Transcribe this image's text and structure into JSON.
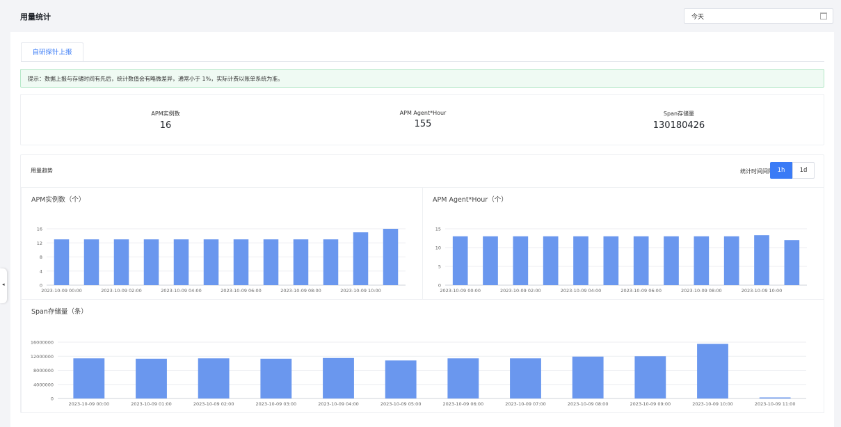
{
  "header": {
    "title": "用量统计",
    "date_value": "今天"
  },
  "tabs": [
    {
      "label": "自研探针上报"
    }
  ],
  "notice": "提示：数据上报与存储时间有先后，统计数值会有略微差异，通常小于 1%，实际计费以账单系统为准。",
  "stats": [
    {
      "label": "APM实例数",
      "value": "16"
    },
    {
      "label": "APM Agent*Hour",
      "value": "155"
    },
    {
      "label": "Span存储量",
      "value": "130180426"
    }
  ],
  "trend": {
    "title": "用量趋势",
    "interval_label": "统计时间间隔",
    "interval_options": [
      "1h",
      "1d"
    ],
    "interval_selected": "1h"
  },
  "colors": {
    "accent": "#3a7bf6",
    "bar": "#6a97ee"
  },
  "chart_data": [
    {
      "type": "bar",
      "title": "APM实例数（个）",
      "categories": [
        "2023-10-09 00:00",
        "2023-10-09 01:00",
        "2023-10-09 02:00",
        "2023-10-09 03:00",
        "2023-10-09 04:00",
        "2023-10-09 05:00",
        "2023-10-09 06:00",
        "2023-10-09 07:00",
        "2023-10-09 08:00",
        "2023-10-09 09:00",
        "2023-10-09 10:00",
        "2023-10-09 11:00"
      ],
      "tick_labels": [
        "2023-10-09 00:00",
        "2023-10-09 02:00",
        "2023-10-09 04:00",
        "2023-10-09 06:00",
        "2023-10-09 08:00",
        "2023-10-09 10:00"
      ],
      "tick_every": 2,
      "values": [
        13,
        13,
        13,
        13,
        13,
        13,
        13,
        13,
        13,
        13,
        15,
        16
      ],
      "yticks": [
        0,
        4,
        8,
        12,
        16
      ],
      "ylim": [
        0,
        16
      ]
    },
    {
      "type": "bar",
      "title": "APM Agent*Hour（个）",
      "categories": [
        "2023-10-09 00:00",
        "2023-10-09 01:00",
        "2023-10-09 02:00",
        "2023-10-09 03:00",
        "2023-10-09 04:00",
        "2023-10-09 05:00",
        "2023-10-09 06:00",
        "2023-10-09 07:00",
        "2023-10-09 08:00",
        "2023-10-09 09:00",
        "2023-10-09 10:00",
        "2023-10-09 11:00"
      ],
      "tick_labels": [
        "2023-10-09 00:00",
        "2023-10-09 02:00",
        "2023-10-09 04:00",
        "2023-10-09 06:00",
        "2023-10-09 08:00",
        "2023-10-09 10:00"
      ],
      "tick_every": 2,
      "values": [
        13,
        13,
        13,
        13,
        13,
        13,
        13,
        13,
        13,
        13,
        13.3,
        12
      ],
      "yticks": [
        0,
        5,
        10,
        15
      ],
      "ylim": [
        0,
        15
      ]
    },
    {
      "type": "bar",
      "title": "Span存储量（条）",
      "categories": [
        "2023-10-09 00:00",
        "2023-10-09 01:00",
        "2023-10-09 02:00",
        "2023-10-09 03:00",
        "2023-10-09 04:00",
        "2023-10-09 05:00",
        "2023-10-09 06:00",
        "2023-10-09 07:00",
        "2023-10-09 08:00",
        "2023-10-09 09:00",
        "2023-10-09 10:00",
        "2023-10-09 11:00"
      ],
      "tick_labels": [
        "2023-10-09 00:00",
        "2023-10-09 01:00",
        "2023-10-09 02:00",
        "2023-10-09 03:00",
        "2023-10-09 04:00",
        "2023-10-09 05:00",
        "2023-10-09 06:00",
        "2023-10-09 07:00",
        "2023-10-09 08:00",
        "2023-10-09 09:00",
        "2023-10-09 10:00",
        "2023-10-09 11:00"
      ],
      "tick_every": 1,
      "values": [
        11400000,
        11300000,
        11400000,
        11300000,
        11500000,
        10800000,
        11400000,
        11400000,
        11900000,
        12000000,
        15500000,
        300000
      ],
      "yticks": [
        0,
        4000000,
        8000000,
        12000000,
        16000000
      ],
      "ylim": [
        0,
        16000000
      ]
    }
  ]
}
